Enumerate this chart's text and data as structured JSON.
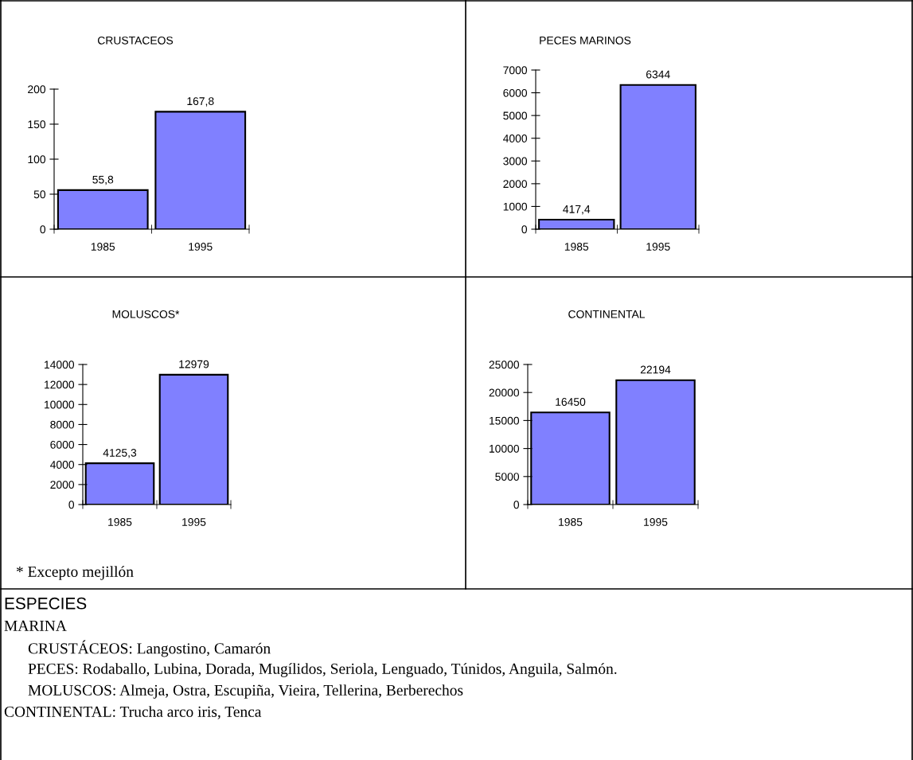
{
  "chart_data": [
    {
      "type": "bar",
      "title": "CRUSTACEOS",
      "categories": [
        "1985",
        "1995"
      ],
      "values": [
        55.8,
        167.8
      ],
      "value_labels": [
        "55,8",
        "167,8"
      ],
      "color": "#8080ff",
      "ylim": [
        0,
        200
      ],
      "yticks": [
        0,
        50,
        100,
        150,
        200
      ],
      "grid": false,
      "legend": false
    },
    {
      "type": "bar",
      "title": "PECES MARINOS",
      "categories": [
        "1985",
        "1995"
      ],
      "values": [
        417.4,
        6344
      ],
      "value_labels": [
        "417,4",
        "6344"
      ],
      "color": "#8080ff",
      "ylim": [
        0,
        7000
      ],
      "yticks": [
        0,
        1000,
        2000,
        3000,
        4000,
        5000,
        6000,
        7000
      ],
      "grid": false,
      "legend": false
    },
    {
      "type": "bar",
      "title": "MOLUSCOS*",
      "categories": [
        "1985",
        "1995"
      ],
      "values": [
        4125.3,
        12979
      ],
      "value_labels": [
        "4125,3",
        "12979"
      ],
      "color": "#8080ff",
      "ylim": [
        0,
        14000
      ],
      "yticks": [
        0,
        2000,
        4000,
        6000,
        8000,
        10000,
        12000,
        14000
      ],
      "grid": false,
      "legend": false,
      "annotations": [
        "* Excepto mejillón"
      ]
    },
    {
      "type": "bar",
      "title": "CONTINENTAL",
      "categories": [
        "1985",
        "1995"
      ],
      "values": [
        16450,
        22194
      ],
      "value_labels": [
        "16450",
        "22194"
      ],
      "color": "#8080ff",
      "ylim": [
        0,
        25000
      ],
      "yticks": [
        0,
        5000,
        10000,
        15000,
        20000,
        25000
      ],
      "grid": false,
      "legend": false
    },
    {
      "type": "other",
      "title": "ESPECIES",
      "annotations": [
        "MARINA",
        "CRUSTÁCEOS: Langostino, Camarón",
        "PECES: Rodaballo, Lubina, Dorada, Mugílidos, Seriola, Lenguado, Túnidos, Anguila, Salmón.",
        "MOLUSCOS: Almeja, Ostra, Escupiña, Vieira, Tellerina, Berberechos",
        "CONTINENTAL: Trucha arco iris, Tenca"
      ]
    }
  ]
}
